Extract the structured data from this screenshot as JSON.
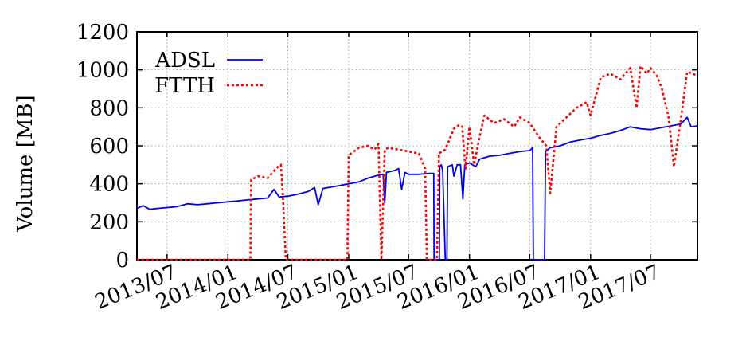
{
  "chart_data": {
    "type": "line",
    "ylabel": "Volume [MB]",
    "xlabel": "",
    "ylim": [
      0,
      1200
    ],
    "yticks": [
      0,
      200,
      400,
      600,
      800,
      1000,
      1200
    ],
    "xlim": [
      "2013-04-01",
      "2017-11-20"
    ],
    "xticks": [
      {
        "date": "2013-07-01",
        "label": "2013/07"
      },
      {
        "date": "2014-01-01",
        "label": "2014/01"
      },
      {
        "date": "2014-07-01",
        "label": "2014/07"
      },
      {
        "date": "2015-01-01",
        "label": "2015/01"
      },
      {
        "date": "2015-07-01",
        "label": "2015/07"
      },
      {
        "date": "2016-01-01",
        "label": "2016/01"
      },
      {
        "date": "2016-07-01",
        "label": "2016/07"
      },
      {
        "date": "2017-01-01",
        "label": "2017/01"
      },
      {
        "date": "2017-07-01",
        "label": "2017/07"
      }
    ],
    "grid": true,
    "legend_position": "top-left",
    "series": [
      {
        "name": "ADSL",
        "color": "#0000ee",
        "style": "solid",
        "points": [
          [
            "2013-04-01",
            270
          ],
          [
            "2013-04-20",
            285
          ],
          [
            "2013-05-10",
            265
          ],
          [
            "2013-06-01",
            270
          ],
          [
            "2013-07-01",
            275
          ],
          [
            "2013-08-01",
            280
          ],
          [
            "2013-09-01",
            295
          ],
          [
            "2013-10-01",
            290
          ],
          [
            "2013-11-01",
            295
          ],
          [
            "2013-12-01",
            300
          ],
          [
            "2014-01-01",
            305
          ],
          [
            "2014-02-01",
            310
          ],
          [
            "2014-03-01",
            315
          ],
          [
            "2014-04-01",
            320
          ],
          [
            "2014-05-01",
            325
          ],
          [
            "2014-05-20",
            370
          ],
          [
            "2014-06-05",
            330
          ],
          [
            "2014-07-01",
            335
          ],
          [
            "2014-08-01",
            345
          ],
          [
            "2014-09-01",
            360
          ],
          [
            "2014-09-20",
            380
          ],
          [
            "2014-10-01",
            290
          ],
          [
            "2014-10-15",
            375
          ],
          [
            "2014-11-01",
            380
          ],
          [
            "2014-12-01",
            390
          ],
          [
            "2015-01-01",
            400
          ],
          [
            "2015-02-01",
            410
          ],
          [
            "2015-03-01",
            430
          ],
          [
            "2015-04-01",
            445
          ],
          [
            "2015-04-15",
            450
          ],
          [
            "2015-04-20",
            300
          ],
          [
            "2015-04-25",
            460
          ],
          [
            "2015-05-20",
            470
          ],
          [
            "2015-06-01",
            480
          ],
          [
            "2015-06-10",
            370
          ],
          [
            "2015-06-20",
            460
          ],
          [
            "2015-07-01",
            450
          ],
          [
            "2015-08-01",
            450
          ],
          [
            "2015-09-01",
            455
          ],
          [
            "2015-09-15",
            455
          ],
          [
            "2015-09-16",
            0
          ],
          [
            "2015-10-02",
            0
          ],
          [
            "2015-10-03",
            490
          ],
          [
            "2015-10-08",
            500
          ],
          [
            "2015-10-12",
            470
          ],
          [
            "2015-10-20",
            0
          ],
          [
            "2015-10-25",
            0
          ],
          [
            "2015-10-27",
            490
          ],
          [
            "2015-11-10",
            500
          ],
          [
            "2015-11-15",
            440
          ],
          [
            "2015-11-25",
            500
          ],
          [
            "2015-12-05",
            500
          ],
          [
            "2015-12-12",
            320
          ],
          [
            "2015-12-18",
            500
          ],
          [
            "2016-01-01",
            510
          ],
          [
            "2016-01-20",
            490
          ],
          [
            "2016-02-01",
            530
          ],
          [
            "2016-03-01",
            545
          ],
          [
            "2016-04-01",
            550
          ],
          [
            "2016-05-01",
            560
          ],
          [
            "2016-06-01",
            570
          ],
          [
            "2016-07-01",
            575
          ],
          [
            "2016-07-10",
            590
          ],
          [
            "2016-07-12",
            0
          ],
          [
            "2016-08-15",
            0
          ],
          [
            "2016-08-18",
            570
          ],
          [
            "2016-09-01",
            590
          ],
          [
            "2016-10-01",
            600
          ],
          [
            "2016-11-01",
            620
          ],
          [
            "2016-12-01",
            630
          ],
          [
            "2017-01-01",
            640
          ],
          [
            "2017-02-01",
            655
          ],
          [
            "2017-03-01",
            665
          ],
          [
            "2017-04-01",
            680
          ],
          [
            "2017-05-01",
            700
          ],
          [
            "2017-06-01",
            690
          ],
          [
            "2017-07-01",
            685
          ],
          [
            "2017-08-01",
            695
          ],
          [
            "2017-09-01",
            705
          ],
          [
            "2017-10-01",
            715
          ],
          [
            "2017-10-20",
            750
          ],
          [
            "2017-11-01",
            700
          ],
          [
            "2017-11-20",
            705
          ]
        ]
      },
      {
        "name": "FTTH",
        "color": "#ff0000",
        "style": "dotted",
        "points": [
          [
            "2013-04-01",
            0
          ],
          [
            "2014-03-10",
            0
          ],
          [
            "2014-03-12",
            420
          ],
          [
            "2014-04-01",
            440
          ],
          [
            "2014-05-01",
            430
          ],
          [
            "2014-06-01",
            490
          ],
          [
            "2014-06-10",
            500
          ],
          [
            "2014-06-15",
            370
          ],
          [
            "2014-06-25",
            0
          ],
          [
            "2014-12-28",
            0
          ],
          [
            "2015-01-01",
            550
          ],
          [
            "2015-02-01",
            590
          ],
          [
            "2015-03-01",
            600
          ],
          [
            "2015-03-20",
            580
          ],
          [
            "2015-04-01",
            610
          ],
          [
            "2015-04-10",
            0
          ],
          [
            "2015-04-20",
            580
          ],
          [
            "2015-05-01",
            590
          ],
          [
            "2015-06-01",
            580
          ],
          [
            "2015-07-01",
            570
          ],
          [
            "2015-08-01",
            560
          ],
          [
            "2015-08-20",
            480
          ],
          [
            "2015-08-25",
            0
          ],
          [
            "2015-09-25",
            0
          ],
          [
            "2015-10-01",
            560
          ],
          [
            "2015-10-20",
            580
          ],
          [
            "2015-11-15",
            690
          ],
          [
            "2015-12-01",
            710
          ],
          [
            "2015-12-10",
            700
          ],
          [
            "2015-12-20",
            480
          ],
          [
            "2016-01-01",
            700
          ],
          [
            "2016-01-15",
            500
          ],
          [
            "2016-02-01",
            650
          ],
          [
            "2016-02-15",
            760
          ],
          [
            "2016-03-15",
            720
          ],
          [
            "2016-04-15",
            740
          ],
          [
            "2016-05-15",
            700
          ],
          [
            "2016-06-01",
            750
          ],
          [
            "2016-07-01",
            720
          ],
          [
            "2016-08-01",
            640
          ],
          [
            "2016-08-20",
            600
          ],
          [
            "2016-09-01",
            350
          ],
          [
            "2016-09-20",
            700
          ],
          [
            "2016-10-20",
            750
          ],
          [
            "2016-11-20",
            800
          ],
          [
            "2016-12-20",
            830
          ],
          [
            "2017-01-01",
            760
          ],
          [
            "2017-02-01",
            960
          ],
          [
            "2017-03-01",
            980
          ],
          [
            "2017-04-01",
            950
          ],
          [
            "2017-05-01",
            1010
          ],
          [
            "2017-05-20",
            800
          ],
          [
            "2017-06-01",
            1020
          ],
          [
            "2017-06-20",
            980
          ],
          [
            "2017-07-01",
            1010
          ],
          [
            "2017-07-20",
            970
          ],
          [
            "2017-08-05",
            900
          ],
          [
            "2017-08-25",
            750
          ],
          [
            "2017-09-10",
            490
          ],
          [
            "2017-10-01",
            740
          ],
          [
            "2017-10-20",
            990
          ],
          [
            "2017-11-20",
            970
          ]
        ]
      }
    ]
  }
}
